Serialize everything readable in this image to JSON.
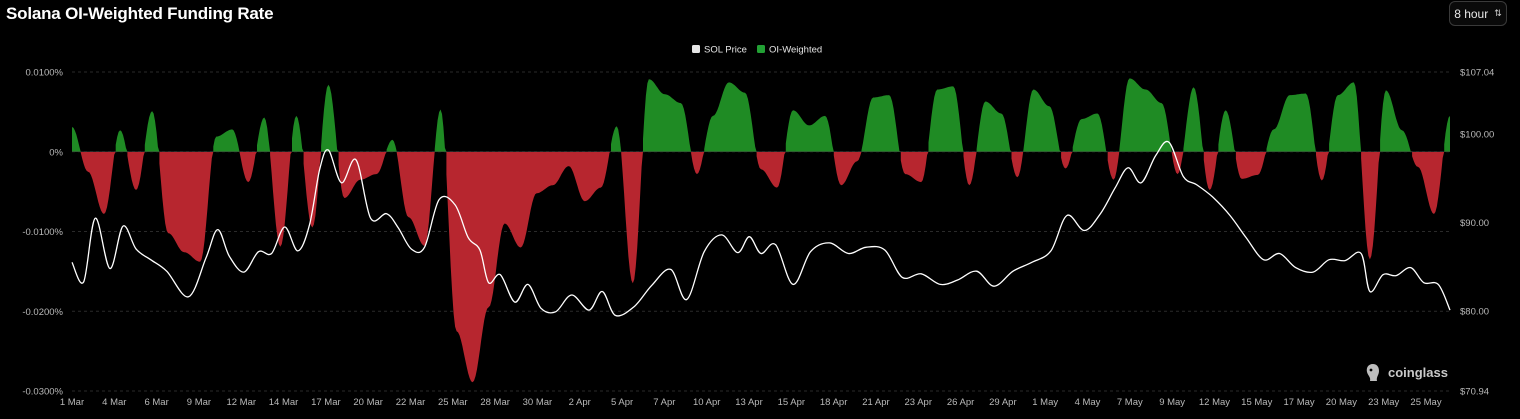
{
  "header": {
    "title": "Solana OI-Weighted Funding Rate",
    "interval": "8 hour"
  },
  "watermark": {
    "text": "coinglass"
  },
  "colors": {
    "positive": "#1f8b24",
    "negative": "#b7262f",
    "price_line": "#ffffff",
    "grid": "#2a2a2a",
    "legend_price": "#e6e6e6",
    "legend_oi": "#22a034"
  },
  "chart_data": {
    "type": "area",
    "title": "Solana OI-Weighted Funding Rate",
    "legend": [
      "SOL Price",
      "OI-Weighted"
    ],
    "legend_position": "top-center",
    "grid": true,
    "y_left": {
      "ticks": [
        "0.0100%",
        "0%",
        "-0.0100%",
        "-0.0200%",
        "-0.0300%"
      ],
      "tick_values": [
        0.01,
        0,
        -0.01,
        -0.02,
        -0.03
      ],
      "range": [
        -0.03,
        0.01
      ]
    },
    "y_right": {
      "ticks": [
        "$107.04",
        "$100.00",
        "$90.00",
        "$80.00",
        "$70.94"
      ],
      "tick_values": [
        107.04,
        100.0,
        90.0,
        80.0,
        70.94
      ],
      "range": [
        70.94,
        107.04
      ]
    },
    "x_ticks": [
      "1 Mar",
      "4 Mar",
      "6 Mar",
      "9 Mar",
      "12 Mar",
      "14 Mar",
      "17 Mar",
      "20 Mar",
      "22 Mar",
      "25 Mar",
      "28 Mar",
      "30 Mar",
      "2 Apr",
      "5 Apr",
      "7 Apr",
      "10 Apr",
      "13 Apr",
      "15 Apr",
      "18 Apr",
      "21 Apr",
      "23 Apr",
      "26 Apr",
      "29 Apr",
      "1 May",
      "4 May",
      "7 May",
      "9 May",
      "12 May",
      "15 May",
      "17 May",
      "20 May",
      "23 May",
      "25 May"
    ],
    "series": [
      {
        "name": "OI-Weighted",
        "unit": "%",
        "points": [
          [
            0,
            0.0031
          ],
          [
            1.1,
            -0.0025
          ],
          [
            2.2,
            -0.0078
          ],
          [
            3.3,
            0.0027
          ],
          [
            4.4,
            -0.0048
          ],
          [
            5.5,
            0.0051
          ],
          [
            6.6,
            -0.0102
          ],
          [
            7.7,
            -0.0126
          ],
          [
            8.8,
            -0.0138
          ],
          [
            9.9,
            0.0019
          ],
          [
            11,
            0.0028
          ],
          [
            12.1,
            -0.0038
          ],
          [
            13.2,
            0.0043
          ],
          [
            14.3,
            -0.0119
          ],
          [
            15.4,
            0.0045
          ],
          [
            16.5,
            -0.0095
          ],
          [
            17.6,
            0.0084
          ],
          [
            18.7,
            -0.0058
          ],
          [
            19.8,
            -0.0035
          ],
          [
            20.9,
            -0.0028
          ],
          [
            22,
            0.0015
          ],
          [
            23.1,
            -0.0082
          ],
          [
            24.2,
            -0.0118
          ],
          [
            25.3,
            0.0053
          ],
          [
            26.4,
            -0.0225
          ],
          [
            27.5,
            -0.0289
          ],
          [
            28.6,
            -0.0195
          ],
          [
            29.7,
            -0.009
          ],
          [
            30.8,
            -0.012
          ],
          [
            31.9,
            -0.0052
          ],
          [
            33,
            -0.0042
          ],
          [
            34.1,
            -0.0018
          ],
          [
            35.2,
            -0.0062
          ],
          [
            36.3,
            -0.0045
          ],
          [
            37.4,
            0.0032
          ],
          [
            38.5,
            -0.0165
          ],
          [
            39.6,
            0.0091
          ],
          [
            40.7,
            0.0072
          ],
          [
            41.8,
            0.0061
          ],
          [
            42.9,
            -0.0028
          ],
          [
            44,
            0.0045
          ],
          [
            45.1,
            0.0087
          ],
          [
            46.2,
            0.0074
          ],
          [
            47.3,
            -0.0022
          ],
          [
            48.4,
            -0.0045
          ],
          [
            49.5,
            0.0052
          ],
          [
            50.6,
            0.0033
          ],
          [
            51.7,
            0.0045
          ],
          [
            52.8,
            -0.0042
          ],
          [
            53.9,
            -0.0012
          ],
          [
            55,
            0.0068
          ],
          [
            56.1,
            0.0071
          ],
          [
            57.2,
            -0.0028
          ],
          [
            58.3,
            -0.0038
          ],
          [
            59.4,
            0.0078
          ],
          [
            60.5,
            0.0082
          ],
          [
            61.6,
            -0.0042
          ],
          [
            62.7,
            0.0063
          ],
          [
            63.8,
            0.0048
          ],
          [
            64.9,
            -0.0032
          ],
          [
            66,
            0.0078
          ],
          [
            67.1,
            0.0057
          ],
          [
            68.2,
            -0.0021
          ],
          [
            69.3,
            0.0041
          ],
          [
            70.4,
            0.0048
          ],
          [
            71.5,
            -0.0035
          ],
          [
            72.6,
            0.0092
          ],
          [
            73.7,
            0.0078
          ],
          [
            74.8,
            0.0061
          ],
          [
            75.9,
            -0.0028
          ],
          [
            77,
            0.0081
          ],
          [
            78.1,
            -0.0048
          ],
          [
            79.2,
            0.0052
          ],
          [
            80.3,
            -0.0034
          ],
          [
            81.4,
            -0.0029
          ],
          [
            82.5,
            0.0028
          ],
          [
            83.6,
            0.0071
          ],
          [
            84.7,
            0.0073
          ],
          [
            85.8,
            -0.0036
          ],
          [
            86.9,
            0.0071
          ],
          [
            88,
            0.0087
          ],
          [
            89.1,
            -0.0135
          ],
          [
            90.2,
            0.0077
          ],
          [
            91.3,
            0.0027
          ],
          [
            92.4,
            -0.0019
          ],
          [
            93.5,
            -0.0078
          ],
          [
            94.6,
            0.0045
          ]
        ]
      },
      {
        "name": "SOL Price",
        "unit": "$",
        "points": [
          [
            0,
            85.5
          ],
          [
            0.8,
            83.3
          ],
          [
            1.6,
            90.5
          ],
          [
            2.6,
            84.8
          ],
          [
            3.5,
            89.6
          ],
          [
            4.4,
            87.0
          ],
          [
            5.4,
            85.8
          ],
          [
            6.5,
            84.5
          ],
          [
            8.0,
            81.6
          ],
          [
            9.2,
            86.0
          ],
          [
            10,
            89.2
          ],
          [
            10.8,
            86.2
          ],
          [
            11.8,
            84.4
          ],
          [
            12.8,
            86.7
          ],
          [
            13.7,
            86.5
          ],
          [
            14.6,
            89.5
          ],
          [
            15.5,
            86.8
          ],
          [
            16.3,
            89.7
          ],
          [
            17.0,
            96.0
          ],
          [
            17.6,
            98.2
          ],
          [
            18.5,
            94.5
          ],
          [
            19.5,
            97.1
          ],
          [
            20.5,
            90.5
          ],
          [
            21.6,
            91.0
          ],
          [
            22.4,
            89.4
          ],
          [
            23.3,
            87.0
          ],
          [
            24.2,
            87.2
          ],
          [
            25.2,
            92.6
          ],
          [
            26.3,
            92.0
          ],
          [
            27.2,
            88.3
          ],
          [
            28,
            86.9
          ],
          [
            28.6,
            83.2
          ],
          [
            29.4,
            84.1
          ],
          [
            30.4,
            81.0
          ],
          [
            31.3,
            83.0
          ],
          [
            32.2,
            80.3
          ],
          [
            33.2,
            79.9
          ],
          [
            34.3,
            81.8
          ],
          [
            35.5,
            80.1
          ],
          [
            36.4,
            82.2
          ],
          [
            37.3,
            79.5
          ],
          [
            38.6,
            80.5
          ],
          [
            39.8,
            82.9
          ],
          [
            41.1,
            84.7
          ],
          [
            42.2,
            81.3
          ],
          [
            43.4,
            86.7
          ],
          [
            44.6,
            88.6
          ],
          [
            45.7,
            86.6
          ],
          [
            46.5,
            88.4
          ],
          [
            47.3,
            86.5
          ],
          [
            48.3,
            87.5
          ],
          [
            49.5,
            83.0
          ],
          [
            50.7,
            86.7
          ],
          [
            52.0,
            87.7
          ],
          [
            53.3,
            86.5
          ],
          [
            54.5,
            87.2
          ],
          [
            55.8,
            86.9
          ],
          [
            57.0,
            83.8
          ],
          [
            58.3,
            84.2
          ],
          [
            59.6,
            83.0
          ],
          [
            60.8,
            83.5
          ],
          [
            62.1,
            84.5
          ],
          [
            63.3,
            82.8
          ],
          [
            64.6,
            84.5
          ],
          [
            65.9,
            85.5
          ],
          [
            67.2,
            86.8
          ],
          [
            68.3,
            90.8
          ],
          [
            69.5,
            89.1
          ],
          [
            70.6,
            91.0
          ],
          [
            71.6,
            93.9
          ],
          [
            72.5,
            96.2
          ],
          [
            73.4,
            94.5
          ],
          [
            74.4,
            97.6
          ],
          [
            75.3,
            99.1
          ],
          [
            76.3,
            95.2
          ],
          [
            77.2,
            94.3
          ],
          [
            78.3,
            92.9
          ],
          [
            79.5,
            90.8
          ],
          [
            80.6,
            88.3
          ],
          [
            81.8,
            85.8
          ],
          [
            82.9,
            86.5
          ],
          [
            84.0,
            84.9
          ],
          [
            85.2,
            84.4
          ],
          [
            86.3,
            85.8
          ],
          [
            87.4,
            85.7
          ],
          [
            88.5,
            86.5
          ],
          [
            89.1,
            82.2
          ],
          [
            90.0,
            84.1
          ],
          [
            90.9,
            84.0
          ],
          [
            91.9,
            84.9
          ],
          [
            92.8,
            83.2
          ],
          [
            93.8,
            83.0
          ],
          [
            94.6,
            80.1
          ]
        ]
      }
    ]
  }
}
